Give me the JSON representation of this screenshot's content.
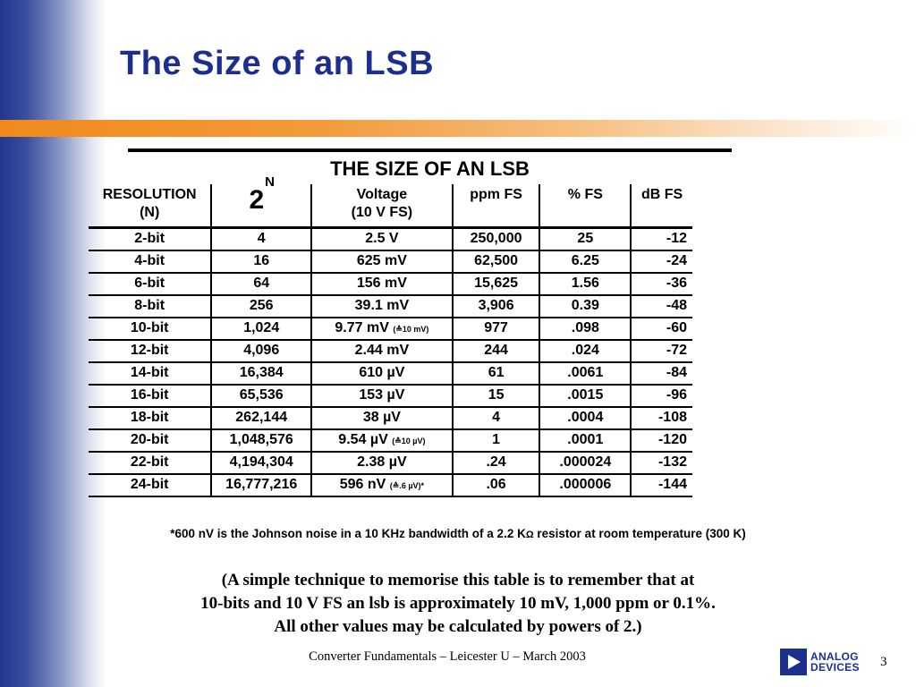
{
  "slide": {
    "title": "The Size of an LSB",
    "table_title": "THE SIZE OF AN LSB",
    "headers": {
      "resolution": "RESOLUTION",
      "resolution_sub": "(N)",
      "power_base": "2",
      "power_exp": "N",
      "voltage": "Voltage",
      "voltage_sub": "(10 V FS)",
      "ppm": "ppm FS",
      "pct": "% FS",
      "db": "dB FS"
    },
    "rows": [
      {
        "bits": "2-bit",
        "count": "4",
        "voltage": "2.5 V",
        "note": "",
        "ppm": "250,000",
        "pct": "25",
        "db": "-12"
      },
      {
        "bits": "4-bit",
        "count": "16",
        "voltage": "625 mV",
        "note": "",
        "ppm": "62,500",
        "pct": "6.25",
        "db": "-24"
      },
      {
        "bits": "6-bit",
        "count": "64",
        "voltage": "156 mV",
        "note": "",
        "ppm": "15,625",
        "pct": "1.56",
        "db": "-36"
      },
      {
        "bits": "8-bit",
        "count": "256",
        "voltage": "39.1 mV",
        "note": "",
        "ppm": "3,906",
        "pct": "0.39",
        "db": "-48"
      },
      {
        "bits": "10-bit",
        "count": "1,024",
        "voltage": "9.77 mV",
        "note": "(≙10 mV)",
        "ppm": "977",
        "pct": ".098",
        "db": "-60"
      },
      {
        "bits": "12-bit",
        "count": "4,096",
        "voltage": "2.44 mV",
        "note": "",
        "ppm": "244",
        "pct": ".024",
        "db": "-72"
      },
      {
        "bits": "14-bit",
        "count": "16,384",
        "voltage": "610 µV",
        "note": "",
        "ppm": "61",
        "pct": ".0061",
        "db": "-84"
      },
      {
        "bits": "16-bit",
        "count": "65,536",
        "voltage": "153 µV",
        "note": "",
        "ppm": "15",
        "pct": ".0015",
        "db": "-96"
      },
      {
        "bits": "18-bit",
        "count": "262,144",
        "voltage": "38 µV",
        "note": "",
        "ppm": "4",
        "pct": ".0004",
        "db": "-108"
      },
      {
        "bits": "20-bit",
        "count": "1,048,576",
        "voltage": "9.54 µV",
        "note": "(≙10 µV)",
        "ppm": "1",
        "pct": ".0001",
        "db": "-120"
      },
      {
        "bits": "22-bit",
        "count": "4,194,304",
        "voltage": "2.38 µV",
        "note": "",
        "ppm": ".24",
        "pct": ".000024",
        "db": "-132"
      },
      {
        "bits": "24-bit",
        "count": "16,777,216",
        "voltage": "596 nV",
        "note": "(≙.6 µV)*",
        "ppm": ".06",
        "pct": ".000006",
        "db": "-144"
      }
    ],
    "footnote_pre": "*600 nV is the Johnson noise in a 10 KHz bandwidth of a 2.2 K",
    "footnote_omega": "Ω",
    "footnote_post": " resistor at room temperature (300 K)",
    "paragraph_lines": [
      "(A simple technique to memorise this table is to remember that at",
      "10-bits and 10 V FS an lsb is approximately 10 mV, 1,000 ppm or 0.1%.",
      "All other values may be calculated by powers of 2.)"
    ],
    "footer": "Converter Fundamentals – Leicester U – March 2003",
    "logo_line1": "ANALOG",
    "logo_line2": "DEVICES",
    "page_number": "3"
  },
  "colors": {
    "title": "#1c2f8f",
    "orange_bar": "#f08a1c",
    "left_bar": "#23358e"
  }
}
